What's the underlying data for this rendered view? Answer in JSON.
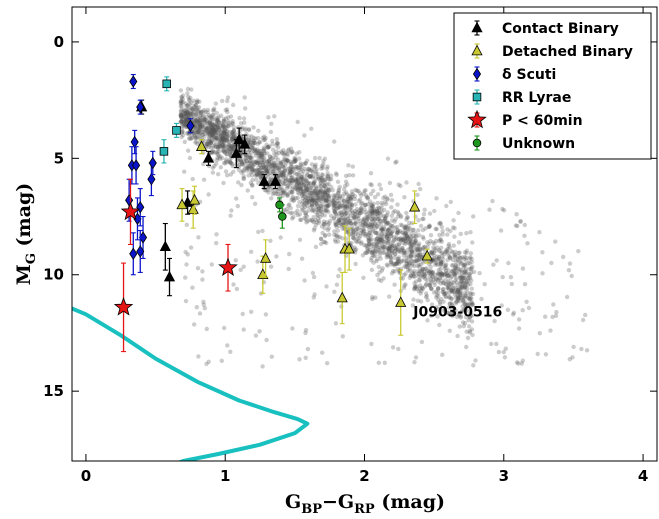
{
  "chart_data": {
    "type": "scatter",
    "xlabel": "G_BP−G_RP (mag)",
    "ylabel": "M_G (mag)",
    "xlim": [
      -0.1,
      4.1
    ],
    "ylim": [
      18.0,
      -1.5
    ],
    "y_inverted": true,
    "grid": false,
    "legend_position": "top-right",
    "xticks": [
      "0",
      "1",
      "2",
      "3",
      "4"
    ],
    "yticks": [
      "0",
      "5",
      "10",
      "15"
    ],
    "annotations": [
      {
        "text": "J0903-0516",
        "x": 2.35,
        "y": 11.8
      }
    ],
    "series": [
      {
        "name": "Contact Binary",
        "marker": "triangle",
        "color": "#000000",
        "points": [
          {
            "x": 0.4,
            "y": 2.8,
            "err": 0.3
          },
          {
            "x": 0.57,
            "y": 8.8,
            "err": 1.0
          },
          {
            "x": 0.6,
            "y": 10.1,
            "err": 0.8
          },
          {
            "x": 0.73,
            "y": 6.9,
            "err": 0.5
          },
          {
            "x": 0.88,
            "y": 5.0,
            "err": 0.3
          },
          {
            "x": 1.08,
            "y": 4.8,
            "err": 0.6
          },
          {
            "x": 1.1,
            "y": 4.2,
            "err": 0.5
          },
          {
            "x": 1.14,
            "y": 4.4,
            "err": 0.4
          },
          {
            "x": 1.28,
            "y": 6.0,
            "err": 0.3
          },
          {
            "x": 1.36,
            "y": 6.0,
            "err": 0.3
          }
        ]
      },
      {
        "name": "Detached Binary",
        "marker": "triangle",
        "color": "#c8c832",
        "points": [
          {
            "x": 0.69,
            "y": 7.0,
            "err": 0.7
          },
          {
            "x": 0.77,
            "y": 7.2,
            "err": 0.8
          },
          {
            "x": 0.78,
            "y": 6.8,
            "err": 0.6
          },
          {
            "x": 0.83,
            "y": 4.5,
            "err": 0.3
          },
          {
            "x": 1.27,
            "y": 10.0,
            "err": 0.8
          },
          {
            "x": 1.29,
            "y": 9.3,
            "err": 0.8
          },
          {
            "x": 1.84,
            "y": 11.0,
            "err": 1.1
          },
          {
            "x": 1.86,
            "y": 8.9,
            "err": 1.0
          },
          {
            "x": 1.89,
            "y": 8.9,
            "err": 0.9
          },
          {
            "x": 2.26,
            "y": 11.2,
            "err": 1.4
          },
          {
            "x": 2.36,
            "y": 7.1,
            "err": 0.7
          },
          {
            "x": 2.45,
            "y": 9.2,
            "err": 0.3
          }
        ]
      },
      {
        "name": "δ Scuti",
        "marker": "diamond",
        "color": "#0a14c8",
        "points": [
          {
            "x": 0.34,
            "y": 1.7,
            "err": 0.3
          },
          {
            "x": 0.39,
            "y": 2.8,
            "err": 0.3
          },
          {
            "x": 0.35,
            "y": 4.3,
            "err": 0.5
          },
          {
            "x": 0.33,
            "y": 5.3,
            "err": 0.8
          },
          {
            "x": 0.36,
            "y": 5.3,
            "err": 0.8
          },
          {
            "x": 0.31,
            "y": 6.8,
            "err": 0.9
          },
          {
            "x": 0.37,
            "y": 7.6,
            "err": 0.9
          },
          {
            "x": 0.34,
            "y": 9.1,
            "err": 0.9
          },
          {
            "x": 0.39,
            "y": 7.1,
            "err": 0.8
          },
          {
            "x": 0.41,
            "y": 8.4,
            "err": 0.9
          },
          {
            "x": 0.39,
            "y": 9.0,
            "err": 0.9
          },
          {
            "x": 0.47,
            "y": 5.9,
            "err": 0.7
          },
          {
            "x": 0.48,
            "y": 5.2,
            "err": 0.5
          },
          {
            "x": 0.75,
            "y": 3.6,
            "err": 0.3
          }
        ]
      },
      {
        "name": "RR Lyrae",
        "marker": "square",
        "color": "#28b4b4",
        "points": [
          {
            "x": 0.58,
            "y": 1.8,
            "err": 0.3
          },
          {
            "x": 0.65,
            "y": 3.8,
            "err": 0.3
          },
          {
            "x": 0.56,
            "y": 4.7,
            "err": 0.5
          }
        ]
      },
      {
        "name": "P < 60min",
        "marker": "star",
        "color": "#e61414",
        "points": [
          {
            "x": 0.27,
            "y": 11.4,
            "err": 1.9
          },
          {
            "x": 0.32,
            "y": 7.3,
            "err": 1.4
          },
          {
            "x": 1.02,
            "y": 9.7,
            "err": 1.0
          }
        ]
      },
      {
        "name": "Unknown",
        "marker": "circle",
        "color": "#1e961e",
        "points": [
          {
            "x": 1.39,
            "y": 7.0,
            "err": 0.3
          },
          {
            "x": 1.41,
            "y": 7.5,
            "err": 0.5
          }
        ]
      }
    ],
    "colors": {
      "background_cloud": "#555555",
      "curve": "#19c0c0",
      "errorbar": "#1a1a1a"
    },
    "legend": {
      "entries": [
        "Contact Binary",
        "Detached Binary",
        "δ Scuti",
        "RR Lyrae",
        "P < 60min",
        "Unknown"
      ]
    }
  }
}
